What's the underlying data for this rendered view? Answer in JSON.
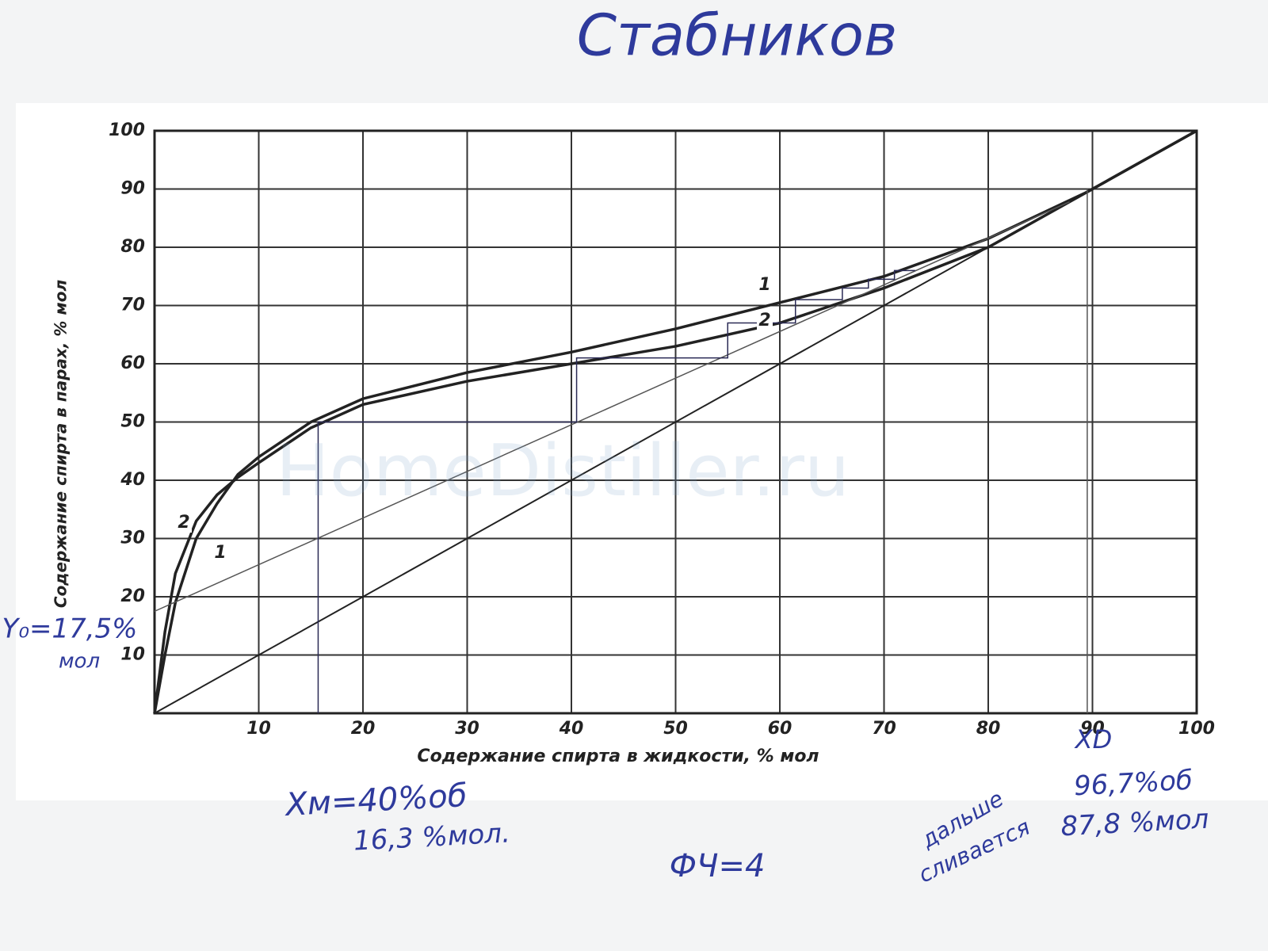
{
  "chart_data": {
    "type": "line",
    "x_label": "Содержание спирта в жидкости, % мол",
    "y_label": "Содержание спирта в парах, % мол",
    "xlim": [
      0,
      100
    ],
    "ylim": [
      0,
      100
    ],
    "xticks": [
      10,
      20,
      30,
      40,
      50,
      60,
      70,
      80,
      90,
      100
    ],
    "yticks": [
      10,
      20,
      30,
      40,
      50,
      60,
      70,
      80,
      90,
      100
    ],
    "grid": true,
    "series": [
      {
        "name": "1",
        "color": "#222222",
        "x": [
          0,
          1,
          2,
          4,
          6,
          8,
          10,
          15,
          20,
          30,
          40,
          50,
          60,
          70,
          80,
          89.5,
          100
        ],
        "values": [
          0,
          10,
          19,
          30,
          36,
          41,
          44,
          50,
          54,
          58.5,
          62,
          66,
          70.5,
          75,
          81.5,
          89.5,
          100
        ]
      },
      {
        "name": "2",
        "color": "#222222",
        "x": [
          0,
          1,
          2,
          4,
          6,
          8,
          10,
          15,
          20,
          30,
          40,
          50,
          60,
          70,
          80,
          89.5,
          100
        ],
        "values": [
          0,
          14,
          24,
          33,
          37.5,
          40.5,
          43,
          49,
          53,
          57,
          60,
          63,
          67,
          73,
          80,
          89.5,
          100
        ]
      },
      {
        "color": "#222222",
        "x": [
          0,
          100
        ],
        "values": [
          0,
          100
        ]
      },
      {
        "color": "#555555",
        "x": [
          0,
          87.8
        ],
        "values": [
          17.5,
          87.8
        ]
      },
      {
        "color": "#2a2a55",
        "x": [
          15.7,
          15.7,
          40.5,
          40.5,
          55,
          55,
          61.5,
          61.5,
          66,
          66,
          68.5,
          68.5,
          71,
          71,
          73
        ],
        "values": [
          0,
          50,
          50,
          61,
          61,
          67,
          67,
          71,
          71,
          73,
          73,
          74.5,
          74.5,
          76,
          76
        ]
      },
      {
        "color": "#555555",
        "x": [
          89.5,
          89.5
        ],
        "values": [
          0,
          90
        ]
      }
    ],
    "annotations": [
      "Стабников",
      "Y₀=17,5%",
      "мол",
      "Xм=40%об",
      "16,3 %мол.",
      "ФЧ=4",
      "дальше",
      "сливается",
      "96,7%об",
      "87,8 %мол",
      "XD",
      "HomeDistiller.ru"
    ]
  }
}
